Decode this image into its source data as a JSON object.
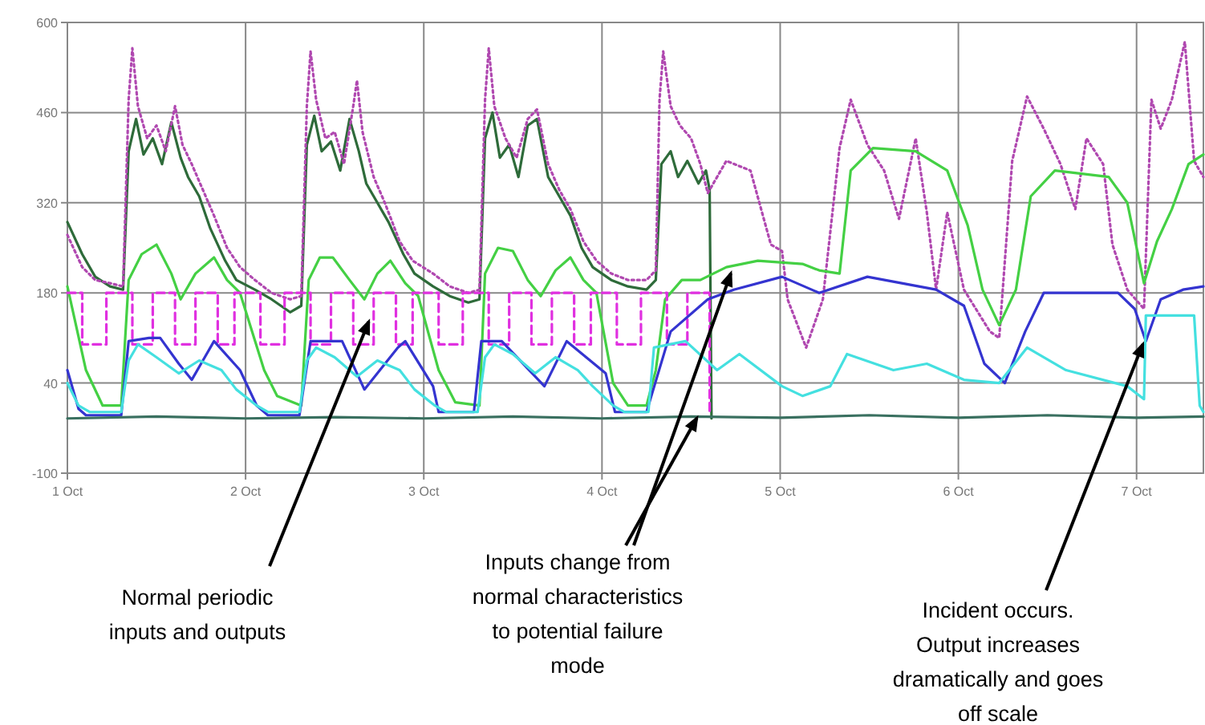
{
  "chart_data": {
    "type": "line",
    "xlim": [
      "--10-01T00:00",
      "--10-07T09:00"
    ],
    "xticks": [
      {
        "value": "--10-01",
        "label": "1 Oct"
      },
      {
        "value": "--10-02",
        "label": "2 Oct"
      },
      {
        "value": "--10-03",
        "label": "3 Oct"
      },
      {
        "value": "--10-04",
        "label": "4 Oct"
      },
      {
        "value": "--10-05",
        "label": "5 Oct"
      },
      {
        "value": "--10-06",
        "label": "6 Oct"
      },
      {
        "value": "--10-07",
        "label": "7 Oct"
      }
    ],
    "ylim": [
      -100,
      600
    ],
    "yticks": [
      -100,
      40,
      180,
      320,
      460,
      600
    ],
    "grid": true,
    "marker": "none",
    "series": [
      {
        "color": "#2e6b3a",
        "line_style": "solid",
        "x": [
          "--10-01T00:00",
          "--10-01T02:00",
          "--10-01T03:45",
          "--10-01T05:45",
          "--10-01T07:30",
          "--10-01T08:15",
          "--10-01T09:15",
          "--10-01T10:15",
          "--10-01T11:30",
          "--10-01T12:45",
          "--10-01T14:00",
          "--10-01T15:15",
          "--10-01T16:15",
          "--10-01T17:45",
          "--10-01T19:15",
          "--10-01T21:15",
          "--10-01T22:45",
          "--10-02T01:15",
          "--10-02T03:30",
          "--10-02T06:00",
          "--10-02T07:30",
          "--10-02T08:15",
          "--10-02T09:15",
          "--10-02T10:15",
          "--10-02T11:30",
          "--10-02T12:45",
          "--10-02T14:00",
          "--10-02T15:15",
          "--10-02T16:15",
          "--10-02T17:45",
          "--10-02T19:15",
          "--10-02T21:15",
          "--10-02T22:45",
          "--10-03T01:15",
          "--10-03T03:30",
          "--10-03T06:00",
          "--10-03T07:30",
          "--10-03T08:15",
          "--10-03T09:15",
          "--10-03T10:15",
          "--10-03T11:30",
          "--10-03T12:45",
          "--10-03T14:00",
          "--10-03T15:15",
          "--10-03T16:45",
          "--10-03T18:15",
          "--10-03T19:45",
          "--10-03T21:15",
          "--10-03T22:45",
          "--10-04T01:15",
          "--10-04T03:30",
          "--10-04T06:00",
          "--10-04T07:15",
          "--10-04T08:00",
          "--10-04T09:15",
          "--10-04T10:15",
          "--10-04T11:30",
          "--10-04T13:00",
          "--10-04T14:00",
          "--10-04T14:30",
          "--10-04T14:45"
        ],
        "values": [
          290,
          240,
          205,
          190,
          185,
          400,
          450,
          395,
          420,
          380,
          445,
          390,
          360,
          330,
          280,
          230,
          200,
          185,
          170,
          150,
          160,
          410,
          455,
          400,
          415,
          370,
          450,
          400,
          350,
          320,
          290,
          240,
          210,
          190,
          175,
          165,
          170,
          420,
          460,
          390,
          410,
          360,
          440,
          450,
          360,
          330,
          300,
          250,
          220,
          200,
          190,
          185,
          200,
          380,
          400,
          360,
          385,
          350,
          370,
          340,
          -15
        ]
      },
      {
        "color": "#b048b0",
        "line_style": "dotted",
        "x": [
          "--10-01T00:00",
          "--10-01T02:00",
          "--10-01T03:45",
          "--10-01T05:45",
          "--10-01T07:30",
          "--10-01T08:15",
          "--10-01T08:45",
          "--10-01T09:30",
          "--10-01T10:45",
          "--10-01T12:00",
          "--10-01T13:15",
          "--10-01T14:30",
          "--10-01T15:30",
          "--10-01T16:45",
          "--10-01T18:15",
          "--10-01T19:45",
          "--10-01T21:30",
          "--10-01T23:15",
          "--10-02T01:15",
          "--10-02T03:30",
          "--10-02T06:00",
          "--10-02T07:30",
          "--10-02T08:15",
          "--10-02T08:45",
          "--10-02T09:30",
          "--10-02T10:45",
          "--10-02T12:00",
          "--10-02T13:15",
          "--10-02T14:30",
          "--10-02T15:00",
          "--10-02T15:45",
          "--10-02T17:15",
          "--10-02T18:45",
          "--10-02T20:45",
          "--10-02T22:30",
          "--10-03T01:15",
          "--10-03T03:30",
          "--10-03T06:00",
          "--10-03T07:30",
          "--10-03T08:15",
          "--10-03T08:45",
          "--10-03T09:30",
          "--10-03T11:00",
          "--10-03T12:30",
          "--10-03T14:00",
          "--10-03T15:15",
          "--10-03T16:45",
          "--10-03T18:15",
          "--10-03T19:45",
          "--10-03T21:30",
          "--10-03T23:15",
          "--10-04T01:15",
          "--10-04T03:30",
          "--10-04T06:00",
          "--10-04T07:15",
          "--10-04T07:45",
          "--10-04T08:15",
          "--10-04T09:15",
          "--10-04T10:30",
          "--10-04T12:00",
          "--10-04T13:15",
          "--10-04T14:15",
          "--10-04T16:45",
          "--10-04T20:00",
          "--10-04T22:45",
          "--10-05T00:15",
          "--10-05T01:00",
          "--10-05T03:30",
          "--10-05T05:45",
          "--10-05T08:00",
          "--10-05T09:30",
          "--10-05T11:45",
          "--10-05T14:00",
          "--10-05T16:00",
          "--10-05T18:15",
          "--10-05T19:45",
          "--10-05T21:00",
          "--10-05T22:30",
          "--10-06T00:45",
          "--10-06T04:15",
          "--10-06T05:30",
          "--10-06T07:15",
          "--10-06T09:15",
          "--10-06T11:30",
          "--10-06T13:45",
          "--10-06T15:45",
          "--10-06T17:15",
          "--10-06T19:30",
          "--10-06T20:45",
          "--10-06T22:45",
          "--10-07T01:00",
          "--10-07T02:00",
          "--10-07T03:15",
          "--10-07T04:45",
          "--10-07T06:30",
          "--10-07T07:45",
          "--10-07T09:00"
        ],
        "values": [
          270,
          220,
          200,
          195,
          190,
          480,
          560,
          470,
          420,
          440,
          400,
          470,
          410,
          380,
          340,
          300,
          250,
          220,
          200,
          180,
          170,
          175,
          470,
          555,
          480,
          420,
          430,
          380,
          470,
          510,
          430,
          360,
          320,
          260,
          230,
          210,
          190,
          180,
          185,
          480,
          560,
          470,
          420,
          390,
          450,
          465,
          380,
          340,
          310,
          260,
          230,
          210,
          200,
          200,
          215,
          480,
          555,
          470,
          440,
          420,
          380,
          335,
          385,
          370,
          255,
          245,
          170,
          95,
          170,
          405,
          480,
          410,
          370,
          295,
          420,
          305,
          185,
          305,
          185,
          120,
          110,
          385,
          485,
          435,
          380,
          310,
          420,
          380,
          255,
          185,
          155,
          480,
          435,
          480,
          570,
          385,
          360
        ]
      },
      {
        "color": "#44d044",
        "line_style": "solid",
        "x": [
          "--10-01T00:00",
          "--10-01T02:30",
          "--10-01T04:45",
          "--10-01T07:15",
          "--10-01T08:15",
          "--10-01T10:00",
          "--10-01T12:00",
          "--10-01T14:00",
          "--10-01T15:15",
          "--10-01T17:15",
          "--10-01T19:45",
          "--10-01T21:30",
          "--10-01T23:15",
          "--10-02T02:30",
          "--10-02T04:15",
          "--10-02T07:30",
          "--10-02T08:30",
          "--10-02T10:00",
          "--10-02T11:45",
          "--10-02T14:00",
          "--10-02T16:00",
          "--10-02T17:45",
          "--10-02T19:30",
          "--10-02T21:30",
          "--10-02T23:15",
          "--10-03T02:00",
          "--10-03T04:15",
          "--10-03T07:30",
          "--10-03T08:15",
          "--10-03T10:00",
          "--10-03T12:00",
          "--10-03T14:00",
          "--10-03T15:45",
          "--10-03T17:45",
          "--10-03T19:45",
          "--10-03T21:30",
          "--10-03T23:15",
          "--10-04T01:30",
          "--10-04T03:30",
          "--10-04T06:00",
          "--10-04T07:15",
          "--10-04T08:30",
          "--10-04T10:45",
          "--10-04T13:15",
          "--10-04T16:45",
          "--10-04T21:00",
          "--10-05T03:00",
          "--10-05T05:15",
          "--10-05T08:00",
          "--10-05T09:30",
          "--10-05T12:30",
          "--10-05T18:15",
          "--10-05T22:30",
          "--10-06T01:15",
          "--10-06T03:15",
          "--10-06T05:30",
          "--10-06T07:45",
          "--10-06T09:45",
          "--10-06T13:00",
          "--10-06T20:15",
          "--10-06T22:45",
          "--10-07T01:00",
          "--10-07T02:45",
          "--10-07T04:45",
          "--10-07T07:00",
          "--10-07T09:00"
        ],
        "values": [
          190,
          60,
          5,
          5,
          200,
          240,
          255,
          210,
          170,
          210,
          235,
          200,
          180,
          60,
          20,
          5,
          200,
          235,
          235,
          200,
          170,
          210,
          230,
          195,
          175,
          60,
          10,
          5,
          210,
          250,
          245,
          200,
          175,
          215,
          235,
          200,
          180,
          40,
          5,
          5,
          60,
          170,
          200,
          200,
          220,
          230,
          225,
          215,
          210,
          370,
          405,
          400,
          370,
          285,
          185,
          130,
          185,
          330,
          370,
          360,
          320,
          195,
          260,
          310,
          380,
          395
        ]
      },
      {
        "color": "#e030e0",
        "line_style": "dashed",
        "x": [
          "--10-01T00:00",
          "--10-01T02:00",
          "--10-01T02:00",
          "--10-01T05:15",
          "--10-01T05:15",
          "--10-01T08:45",
          "--10-01T08:45",
          "--10-01T11:30",
          "--10-01T11:30",
          "--10-01T14:30",
          "--10-01T14:30",
          "--10-01T17:15",
          "--10-01T17:15",
          "--10-01T20:15",
          "--10-01T20:15",
          "--10-01T22:30",
          "--10-01T22:30",
          "--10-02T02:00",
          "--10-02T02:00",
          "--10-02T05:15",
          "--10-02T05:15",
          "--10-02T08:45",
          "--10-02T08:45",
          "--10-02T11:30",
          "--10-02T11:30",
          "--10-02T14:30",
          "--10-02T14:30",
          "--10-02T17:15",
          "--10-02T17:15",
          "--10-02T20:15",
          "--10-02T20:15",
          "--10-02T22:30",
          "--10-02T22:30",
          "--10-03T02:00",
          "--10-03T02:00",
          "--10-03T05:15",
          "--10-03T05:15",
          "--10-03T08:45",
          "--10-03T08:45",
          "--10-03T11:30",
          "--10-03T11:30",
          "--10-03T14:30",
          "--10-03T14:30",
          "--10-03T17:15",
          "--10-03T17:15",
          "--10-03T20:15",
          "--10-03T20:15",
          "--10-03T22:30",
          "--10-03T22:30",
          "--10-04T02:00",
          "--10-04T02:00",
          "--10-04T05:15",
          "--10-04T05:15",
          "--10-04T08:45",
          "--10-04T08:45",
          "--10-04T11:30",
          "--10-04T11:30",
          "--10-04T14:30",
          "--10-04T14:30"
        ],
        "values": [
          180,
          180,
          100,
          100,
          180,
          180,
          100,
          100,
          180,
          180,
          100,
          100,
          180,
          180,
          100,
          100,
          180,
          180,
          100,
          100,
          180,
          180,
          100,
          100,
          180,
          180,
          100,
          100,
          180,
          180,
          100,
          100,
          180,
          180,
          100,
          100,
          180,
          180,
          100,
          100,
          180,
          180,
          100,
          100,
          180,
          180,
          100,
          100,
          180,
          180,
          100,
          100,
          180,
          180,
          100,
          100,
          180,
          180,
          -10
        ]
      },
      {
        "color": "#3434d0",
        "line_style": "solid",
        "x": [
          "--10-01T00:00",
          "--10-01T01:30",
          "--10-01T02:30",
          "--10-01T07:15",
          "--10-01T08:15",
          "--10-01T11:00",
          "--10-01T12:30",
          "--10-01T15:00",
          "--10-01T16:45",
          "--10-01T19:45",
          "--10-01T23:15",
          "--10-02T01:30",
          "--10-02T03:00",
          "--10-02T07:15",
          "--10-02T08:45",
          "--10-02T13:00",
          "--10-02T16:00",
          "--10-02T20:30",
          "--10-02T21:30",
          "--10-03T01:15",
          "--10-03T02:00",
          "--10-03T06:45",
          "--10-03T07:45",
          "--10-03T10:30",
          "--10-03T16:15",
          "--10-03T19:15",
          "--10-04T00:30",
          "--10-04T01:45",
          "--10-04T06:00",
          "--10-04T09:15",
          "--10-04T14:15",
          "--10-04T17:45",
          "--10-05T00:15",
          "--10-05T05:15",
          "--10-05T11:45",
          "--10-05T21:00",
          "--10-06T00:45",
          "--10-06T03:30",
          "--10-06T06:15",
          "--10-06T09:00",
          "--10-06T11:30",
          "--10-06T21:30",
          "--10-06T23:45",
          "--10-07T01:15",
          "--10-07T03:15",
          "--10-07T06:15",
          "--10-07T09:00"
        ],
        "values": [
          60,
          0,
          -10,
          -10,
          105,
          110,
          110,
          70,
          45,
          105,
          60,
          5,
          -10,
          -10,
          105,
          105,
          30,
          95,
          105,
          35,
          -5,
          -5,
          105,
          105,
          35,
          105,
          55,
          -5,
          -5,
          120,
          170,
          185,
          205,
          180,
          205,
          185,
          160,
          70,
          40,
          120,
          180,
          180,
          155,
          105,
          170,
          185,
          190
        ]
      },
      {
        "color": "#44e0e0",
        "line_style": "solid",
        "x": [
          "--10-01T00:00",
          "--10-01T01:30",
          "--10-01T03:00",
          "--10-01T07:15",
          "--10-01T08:15",
          "--10-01T09:30",
          "--10-01T12:00",
          "--10-01T15:00",
          "--10-01T17:45",
          "--10-01T20:45",
          "--10-01T22:45",
          "--10-02T01:30",
          "--10-02T03:00",
          "--10-02T07:15",
          "--10-02T08:15",
          "--10-02T09:30",
          "--10-02T12:00",
          "--10-02T15:00",
          "--10-02T17:45",
          "--10-02T20:45",
          "--10-02T22:45",
          "--10-03T01:30",
          "--10-03T03:00",
          "--10-03T07:15",
          "--10-03T08:15",
          "--10-03T09:30",
          "--10-03T12:00",
          "--10-03T15:00",
          "--10-03T17:45",
          "--10-03T20:45",
          "--10-03T22:45",
          "--10-04T01:30",
          "--10-04T03:00",
          "--10-04T06:15",
          "--10-04T07:00",
          "--10-04T11:15",
          "--10-04T15:30",
          "--10-04T18:30",
          "--10-05T00:15",
          "--10-05T03:00",
          "--10-05T06:45",
          "--10-05T09:00",
          "--10-05T15:15",
          "--10-05T19:45",
          "--10-06T00:45",
          "--10-06T05:30",
          "--10-06T09:15",
          "--10-06T14:30",
          "--10-06T22:45",
          "--10-07T01:00",
          "--10-07T01:15",
          "--10-07T07:45",
          "--10-07T08:30",
          "--10-07T09:00"
        ],
        "values": [
          40,
          5,
          -5,
          -5,
          75,
          100,
          80,
          55,
          75,
          60,
          30,
          5,
          -5,
          -5,
          75,
          95,
          80,
          50,
          75,
          60,
          30,
          5,
          -5,
          -5,
          80,
          100,
          85,
          55,
          80,
          60,
          35,
          5,
          -5,
          -5,
          95,
          105,
          60,
          85,
          35,
          20,
          35,
          85,
          60,
          70,
          45,
          40,
          95,
          60,
          35,
          15,
          145,
          145,
          5,
          -5
        ]
      },
      {
        "color": "#3a7060",
        "line_style": "solid",
        "x": [
          "--10-01T00:00",
          "--10-01T12:00",
          "--10-02T00:00",
          "--10-02T12:00",
          "--10-03T00:00",
          "--10-03T12:00",
          "--10-04T00:00",
          "--10-04T12:00",
          "--10-05T00:00",
          "--10-05T12:00",
          "--10-06T00:00",
          "--10-06T12:00",
          "--10-07T00:00",
          "--10-07T09:00"
        ],
        "values": [
          -15,
          -12,
          -15,
          -13,
          -15,
          -12,
          -15,
          -12,
          -14,
          -10,
          -14,
          -10,
          -14,
          -12
        ]
      }
    ],
    "annotations": [
      {
        "text": "Normal periodic\ninputs and outputs",
        "x": "--10-02T16:45",
        "y": 140
      },
      {
        "text": "Inputs change from\nnormal characteristics\nto potential failure\nmode",
        "x": "--10-04T17:30",
        "y": 215
      },
      {
        "text": "Incident occurs.\nOutput increases\ndramatically and goes\noff scale",
        "x": "--10-07T01:00",
        "y": 105
      }
    ]
  }
}
